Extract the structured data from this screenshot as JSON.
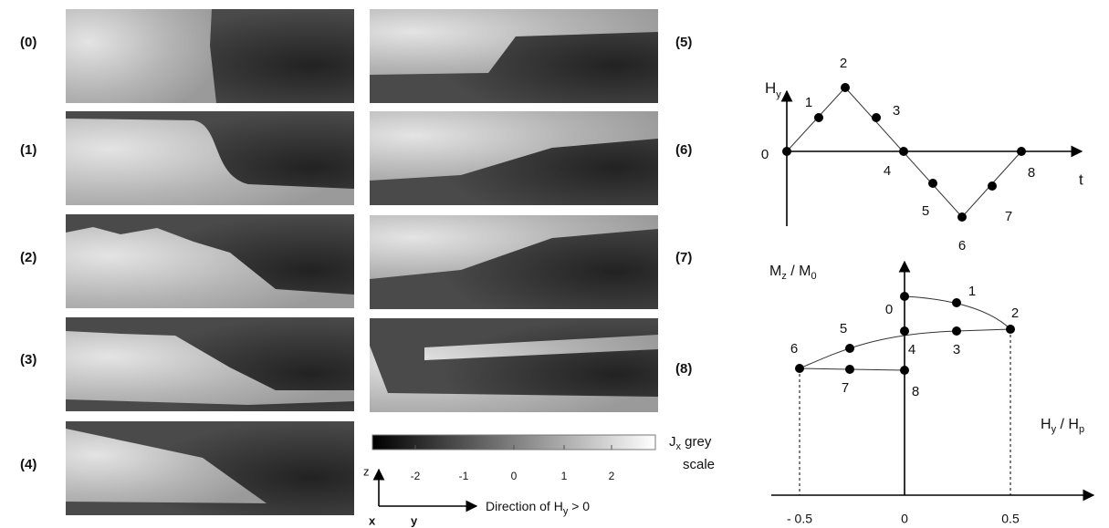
{
  "panel_labels": [
    "(0)",
    "(1)",
    "(2)",
    "(3)",
    "(4)",
    "(5)",
    "(6)",
    "(7)",
    "(8)"
  ],
  "colorbar": {
    "ticks": [
      "-2",
      "-1",
      "0",
      "1",
      "2"
    ],
    "label": {
      "base": "J",
      "sub": "x",
      "rest": " grey",
      "line2": "scale"
    }
  },
  "axes_icon": {
    "z": "z",
    "x": "x",
    "y": "y",
    "direction": {
      "text": "Direction of  ",
      "base": "H",
      "sub": "y",
      "rest": " > 0"
    }
  },
  "field_plot": {
    "y_label": {
      "base": "H",
      "sub": "y"
    },
    "x_label": "t",
    "point_labels": [
      "0",
      "1",
      "2",
      "3",
      "4",
      "5",
      "6",
      "7",
      "8"
    ]
  },
  "magnetization_plot": {
    "y_label": {
      "base": "M",
      "sub": "z",
      "mid": " / ",
      "base2": "M",
      "sub2": "0"
    },
    "x_label": {
      "base": "H",
      "sub": "y",
      "mid": " / ",
      "base2": "H",
      "sub2": "p"
    },
    "x_ticks": [
      "- 0.5",
      "0",
      "0.5"
    ],
    "point_labels": [
      "0",
      "1",
      "2",
      "3",
      "4",
      "5",
      "6",
      "7",
      "8"
    ]
  }
}
